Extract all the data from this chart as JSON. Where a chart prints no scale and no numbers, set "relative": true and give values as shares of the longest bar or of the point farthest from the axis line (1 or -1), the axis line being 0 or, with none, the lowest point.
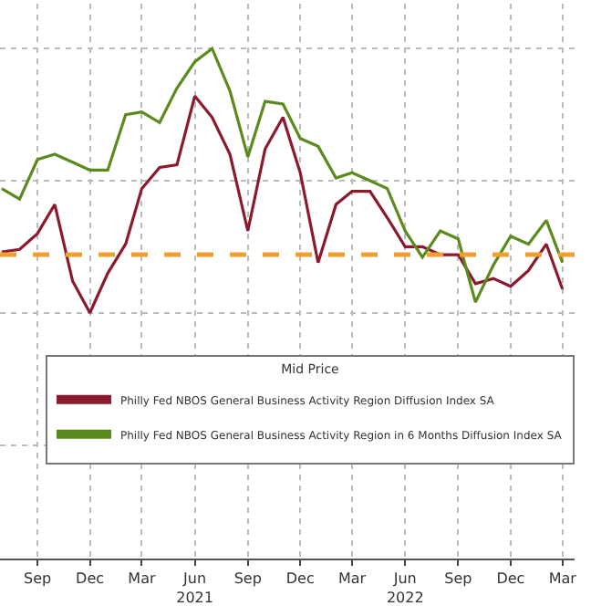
{
  "chart_data": {
    "type": "line",
    "relative": true,
    "grid": true,
    "legend": "bottom right",
    "legend_title": "Mid Price",
    "x": [
      "2020-07-01",
      "2020-08-01",
      "2020-09-01",
      "2020-10-01",
      "2020-11-01",
      "2020-12-01",
      "2021-01-01",
      "2021-02-01",
      "2021-03-01",
      "2021-04-01",
      "2021-05-01",
      "2021-06-01",
      "2021-07-01",
      "2021-08-01",
      "2021-09-01",
      "2021-10-01",
      "2021-11-01",
      "2021-12-01",
      "2022-01-01",
      "2022-02-01",
      "2022-03-01",
      "2022-04-01",
      "2022-05-01",
      "2022-06-01",
      "2022-07-01",
      "2022-08-01",
      "2022-09-01",
      "2022-10-01",
      "2022-11-01",
      "2022-12-01",
      "2023-01-01",
      "2023-02-01",
      "2023-03-01"
    ],
    "xlim": [
      "2020-06-28",
      "2023-03-22"
    ],
    "xticks": [
      {
        "value": "2020-09-01",
        "label": "Sep"
      },
      {
        "value": "2020-12-01",
        "label": "Dec"
      },
      {
        "value": "2021-03-01",
        "label": "Mar"
      },
      {
        "value": "2021-06-01",
        "label": "Jun\n2021"
      },
      {
        "value": "2021-09-01",
        "label": "Sep"
      },
      {
        "value": "2021-12-01",
        "label": "Dec"
      },
      {
        "value": "2022-03-01",
        "label": "Mar"
      },
      {
        "value": "2022-06-01",
        "label": "Jun\n2022"
      },
      {
        "value": "2022-09-01",
        "label": "Sep"
      },
      {
        "value": "2022-12-01",
        "label": "Dec"
      },
      {
        "value": "2023-03-01",
        "label": "Mar"
      }
    ],
    "series": [
      {
        "name": "Philly Fed NBOS General Business Activity Region Diffusion Index SA",
        "color": "#8b1a2e",
        "values": [
          0.23,
          0.24,
          0.3,
          0.41,
          0.12,
          0,
          0.15,
          0.26,
          0.47,
          0.55,
          0.56,
          0.82,
          0.74,
          0.6,
          0.31,
          0.62,
          0.74,
          0.53,
          0.19,
          0.41,
          0.46,
          0.46,
          0.36,
          0.25,
          0.25,
          0.22,
          0.22,
          0.11,
          0.13,
          0.1,
          0.16,
          0.26,
          0.09
        ]
      },
      {
        "name": "Philly Fed NBOS General Business Activity Region in 6 Months Diffusion Index SA",
        "color": "#5b8a1e",
        "values": [
          0.47,
          0.43,
          0.58,
          0.6,
          0.57,
          0.54,
          0.54,
          0.75,
          0.76,
          0.72,
          0.85,
          0.95,
          1.0,
          0.84,
          0.59,
          0.8,
          0.79,
          0.66,
          0.63,
          0.51,
          0.53,
          0.5,
          0.47,
          0.31,
          0.21,
          0.31,
          0.28,
          0.04,
          0.18,
          0.29,
          0.26,
          0.35,
          0.19
        ]
      }
    ],
    "ref_lines": [
      {
        "axis": "y",
        "value": 0.22,
        "color": "#f0a030",
        "line_style": "dashed"
      }
    ]
  }
}
